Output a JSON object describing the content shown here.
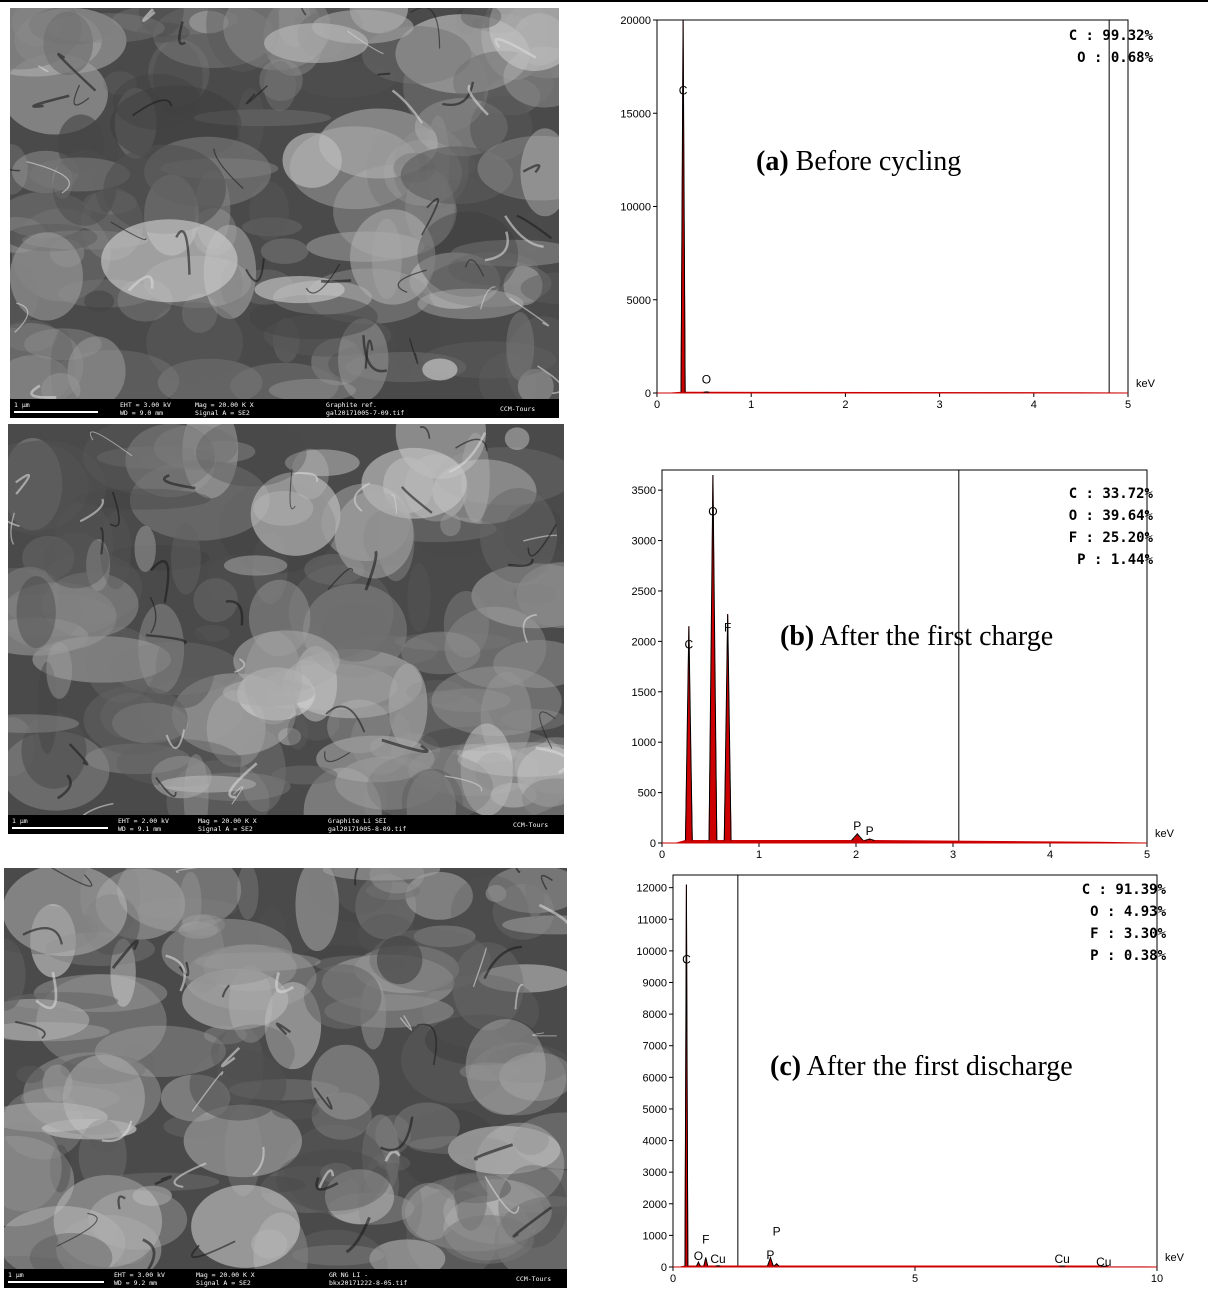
{
  "sem_images": [
    {
      "scale": "1 μm",
      "eht": "EHT = 3.00 kV",
      "wd": "WD = 9.0 mm",
      "mag": "Mag = 20.00 K X",
      "signal": "Signal A = SE2",
      "sample": "Graphite ref.",
      "file": "gal20171005-7-09.tif",
      "lab": "CCM-Tours"
    },
    {
      "scale": "1 μm",
      "eht": "EHT = 2.00 kV",
      "wd": "WD = 9.1 mm",
      "mag": "Mag = 20.00 K X",
      "signal": "Signal A = SE2",
      "sample": "Graphite Li SEI",
      "file": "gal20171005-8-09.tif",
      "lab": "CCM-Tours"
    },
    {
      "scale": "1 μm",
      "eht": "EHT = 3.00 kV",
      "wd": "WD = 9.2 mm",
      "mag": "Mag = 20.00 K X",
      "signal": "Signal A = SE2",
      "sample": "GR NG LI -",
      "file": "bkx20171222-8-05.tif",
      "lab": "CCM-Tours"
    }
  ],
  "chart_data": [
    {
      "type": "line",
      "title_letter": "(a)",
      "title_text": " Before cycling",
      "xlabel": "keV",
      "xlim": [
        0,
        5
      ],
      "ylim": [
        0,
        20000
      ],
      "xticks": [
        0,
        1,
        2,
        3,
        4,
        5
      ],
      "yticks": [
        0,
        5000,
        10000,
        15000,
        20000
      ],
      "marker_line_x": 4.8,
      "composition": [
        "C : 99.32%",
        "O : 0.68%"
      ],
      "peaks": [
        {
          "element": "C",
          "x": 0.277,
          "y": 20000,
          "label_y": 16000,
          "width": 0.022
        },
        {
          "element": "O",
          "x": 0.525,
          "y": 60,
          "label_y": 500,
          "width": 0.03
        }
      ],
      "baseline": 40,
      "colors": {
        "fill": "#cc0000",
        "line": "#000000"
      }
    },
    {
      "type": "line",
      "title_letter": "(b)",
      "title_text": " After the first charge",
      "xlabel": "keV",
      "xlim": [
        0,
        5
      ],
      "ylim": [
        0,
        3700
      ],
      "xticks": [
        0,
        1,
        2,
        3,
        4,
        5
      ],
      "yticks": [
        0,
        500,
        1000,
        1500,
        2000,
        2500,
        3000,
        3500
      ],
      "marker_line_x": 3.06,
      "composition": [
        "C : 33.72%",
        "O : 39.64%",
        "F : 25.20%",
        "P : 1.44%"
      ],
      "peaks": [
        {
          "element": "C",
          "x": 0.277,
          "y": 2150,
          "label_y": 1930,
          "width": 0.035
        },
        {
          "element": "O",
          "x": 0.525,
          "y": 3650,
          "label_y": 3250,
          "width": 0.04
        },
        {
          "element": "F",
          "x": 0.677,
          "y": 2270,
          "label_y": 2100,
          "width": 0.035
        },
        {
          "element": "P",
          "x": 2.013,
          "y": 90,
          "label_y": 130,
          "width": 0.06
        },
        {
          "element": "P",
          "x": 2.14,
          "y": 40,
          "label_y": 80,
          "width": 0.05
        }
      ],
      "baseline": 25,
      "colors": {
        "fill": "#cc0000",
        "line": "#000000"
      }
    },
    {
      "type": "line",
      "title_letter": "(c)",
      "title_text": " After the first discharge",
      "xlabel": "keV",
      "xlim": [
        0,
        10
      ],
      "ylim": [
        0,
        12400
      ],
      "xticks": [
        0,
        5,
        10
      ],
      "yticks": [
        0,
        1000,
        2000,
        3000,
        4000,
        5000,
        6000,
        7000,
        8000,
        9000,
        10000,
        11000,
        12000
      ],
      "marker_line_x": 1.34,
      "composition": [
        "C : 91.39%",
        "O : 4.93%",
        "F : 3.30%",
        "P : 0.38%"
      ],
      "peaks": [
        {
          "element": "C",
          "x": 0.277,
          "y": 12100,
          "label_y": 9600,
          "width": 0.03
        },
        {
          "element": "O",
          "x": 0.525,
          "y": 150,
          "label_y": 220,
          "width": 0.04
        },
        {
          "element": "F",
          "x": 0.677,
          "y": 300,
          "label_y": 750,
          "width": 0.04
        },
        {
          "element": "Cu",
          "x": 0.93,
          "y": 40,
          "label_y": 120,
          "width": 0.05
        },
        {
          "element": "P",
          "x": 2.013,
          "y": 300,
          "label_y": 250,
          "width": 0.06
        },
        {
          "element": "P",
          "x": 2.14,
          "y": 100,
          "label_y": 1000,
          "width": 0.05
        },
        {
          "element": "Cu",
          "x": 8.04,
          "y": 30,
          "label_y": 120,
          "width": 0.06
        },
        {
          "element": "Cu",
          "x": 8.9,
          "y": 20,
          "label_y": 30,
          "width": 0.06
        }
      ],
      "baseline": 30,
      "colors": {
        "fill": "#cc0000",
        "line": "#000000"
      }
    }
  ]
}
